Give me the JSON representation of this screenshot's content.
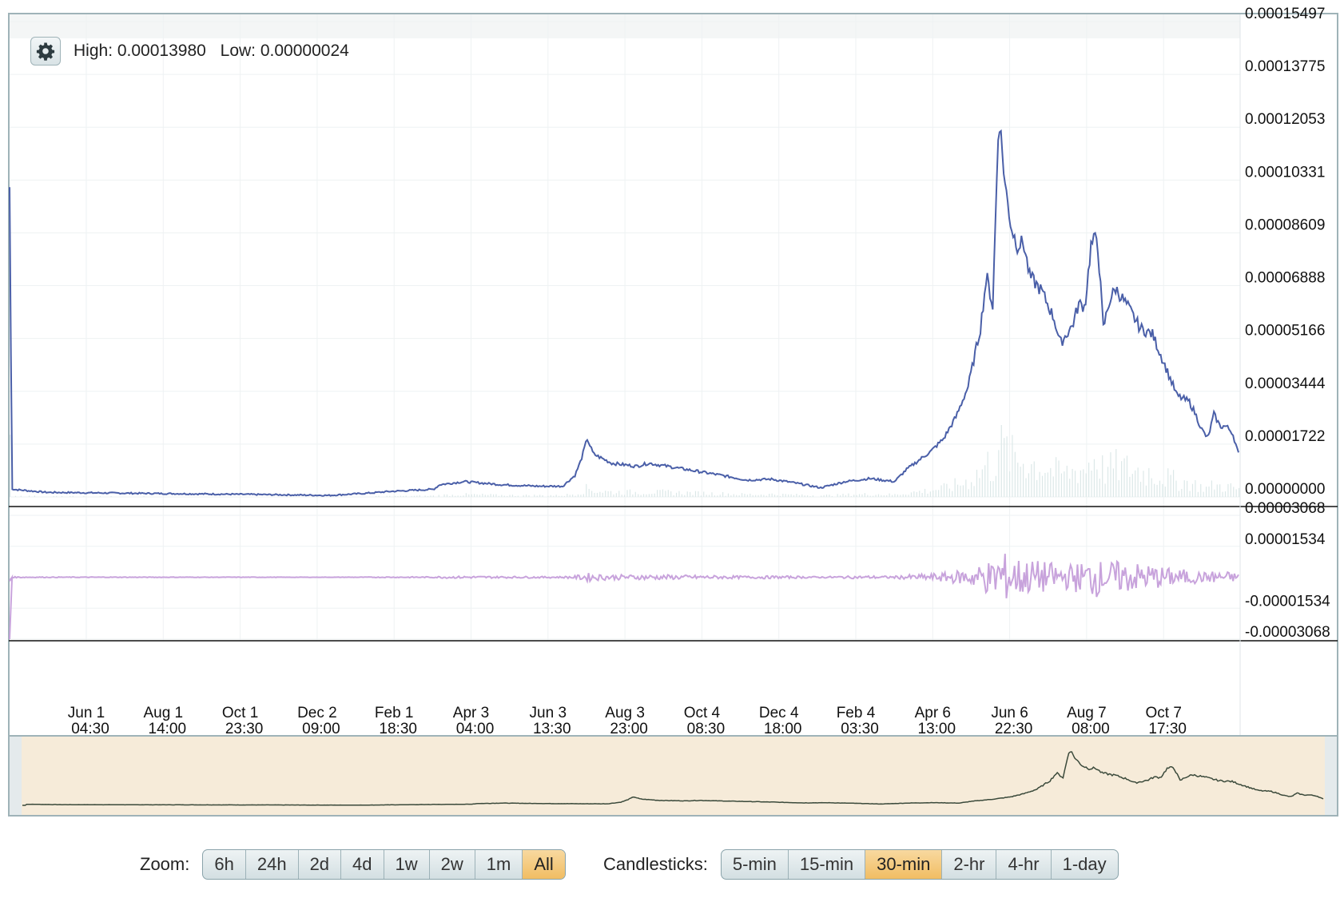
{
  "header": {
    "high_label": "High: 0.00013980",
    "low_label": "Low: 0.00000024",
    "settings_icon": "gear-icon"
  },
  "chart_data": [
    {
      "type": "line",
      "panel": "price",
      "yticks": [
        "0.00015497",
        "0.00013775",
        "0.00012053",
        "0.00010331",
        "0.00008609",
        "0.00006888",
        "0.00005166",
        "0.00003444",
        "0.00001722",
        "0.00000000"
      ],
      "ylim": [
        0,
        0.00015497
      ],
      "x_tick_labels": [
        {
          "date": "Jun 1",
          "time": "04:30"
        },
        {
          "date": "Aug 1",
          "time": "14:00"
        },
        {
          "date": "Oct 1",
          "time": "23:30"
        },
        {
          "date": "Dec 2",
          "time": "09:00"
        },
        {
          "date": "Feb 1",
          "time": "18:30"
        },
        {
          "date": "Apr 3",
          "time": "04:00"
        },
        {
          "date": "Jun 3",
          "time": "13:30"
        },
        {
          "date": "Aug 3",
          "time": "23:00"
        },
        {
          "date": "Oct 4",
          "time": "08:30"
        },
        {
          "date": "Dec 4",
          "time": "18:00"
        },
        {
          "date": "Feb 4",
          "time": "03:30"
        },
        {
          "date": "Apr 6",
          "time": "13:00"
        },
        {
          "date": "Jun 6",
          "time": "22:30"
        },
        {
          "date": "Aug 7",
          "time": "08:00"
        },
        {
          "date": "Oct 7",
          "time": "17:30"
        }
      ],
      "series": [
        {
          "color": "#4a5fa8",
          "points": [
            [
              0.0,
              0.000101
            ],
            [
              0.002,
              2.5e-06
            ],
            [
              0.03,
              1.5e-06
            ],
            [
              0.1,
              1.2e-06
            ],
            [
              0.2,
              8e-07
            ],
            [
              0.26,
              5e-07
            ],
            [
              0.29,
              1.2e-06
            ],
            [
              0.31,
              1.8e-06
            ],
            [
              0.345,
              2.5e-06
            ],
            [
              0.35,
              4e-06
            ],
            [
              0.37,
              5e-06
            ],
            [
              0.4,
              4e-06
            ],
            [
              0.43,
              3.5e-06
            ],
            [
              0.45,
              3.5e-06
            ],
            [
              0.46,
              7e-06
            ],
            [
              0.465,
              1.2e-05
            ],
            [
              0.47,
              1.9e-05
            ],
            [
              0.475,
              1.4e-05
            ],
            [
              0.49,
              1.1e-05
            ],
            [
              0.51,
              1e-05
            ],
            [
              0.52,
              1.1e-05
            ],
            [
              0.55,
              9e-06
            ],
            [
              0.58,
              7e-06
            ],
            [
              0.6,
              5.5e-06
            ],
            [
              0.62,
              5.8e-06
            ],
            [
              0.64,
              4.5e-06
            ],
            [
              0.66,
              3e-06
            ],
            [
              0.68,
              5e-06
            ],
            [
              0.7,
              6e-06
            ],
            [
              0.72,
              5e-06
            ],
            [
              0.73,
              9e-06
            ],
            [
              0.75,
              1.5e-05
            ],
            [
              0.76,
              1.9e-05
            ],
            [
              0.77,
              2.6e-05
            ],
            [
              0.78,
              3.6e-05
            ],
            [
              0.79,
              5.5e-05
            ],
            [
              0.795,
              7.2e-05
            ],
            [
              0.8,
              6.2e-05
            ],
            [
              0.805,
              0.000125
            ],
            [
              0.81,
              0.000102
            ],
            [
              0.815,
              8.8e-05
            ],
            [
              0.82,
              8.2e-05
            ],
            [
              0.825,
              8.3e-05
            ],
            [
              0.83,
              7.2e-05
            ],
            [
              0.84,
              6.7e-05
            ],
            [
              0.85,
              5.8e-05
            ],
            [
              0.855,
              5e-05
            ],
            [
              0.865,
              5.6e-05
            ],
            [
              0.87,
              6.3e-05
            ],
            [
              0.875,
              6.2e-05
            ],
            [
              0.88,
              8.2e-05
            ],
            [
              0.885,
              8.5e-05
            ],
            [
              0.89,
              5.5e-05
            ],
            [
              0.895,
              6.4e-05
            ],
            [
              0.9,
              6.8e-05
            ],
            [
              0.91,
              6.2e-05
            ],
            [
              0.92,
              5.5e-05
            ],
            [
              0.93,
              5.3e-05
            ],
            [
              0.94,
              4.3e-05
            ],
            [
              0.95,
              3.3e-05
            ],
            [
              0.96,
              3.1e-05
            ],
            [
              0.965,
              2.7e-05
            ],
            [
              0.97,
              2.2e-05
            ],
            [
              0.975,
              1.9e-05
            ],
            [
              0.98,
              2.7e-05
            ],
            [
              0.985,
              2.3e-05
            ],
            [
              0.99,
              2.3e-05
            ],
            [
              0.995,
              2.1e-05
            ],
            [
              1.0,
              1.4e-05
            ]
          ]
        }
      ]
    },
    {
      "type": "area",
      "panel": "oscillator",
      "yticks": [
        "0.00003068",
        "0.00001534",
        "-0.00001534",
        "-0.00003068"
      ],
      "ylim": [
        -3.068e-05,
        3.068e-05
      ],
      "series": [
        {
          "color": "#c8a3dc",
          "baseline": 0
        }
      ]
    },
    {
      "type": "area",
      "panel": "navigator",
      "fill": "#f6ebd9",
      "line_color": "#3b4a3b"
    }
  ],
  "zoom": {
    "label": "Zoom:",
    "buttons": [
      "6h",
      "24h",
      "2d",
      "4d",
      "1w",
      "2w",
      "1m",
      "All"
    ],
    "active": "All"
  },
  "candlesticks": {
    "label": "Candlesticks:",
    "buttons": [
      "5-min",
      "15-min",
      "30-min",
      "2-hr",
      "4-hr",
      "1-day"
    ],
    "active": "30-min"
  }
}
